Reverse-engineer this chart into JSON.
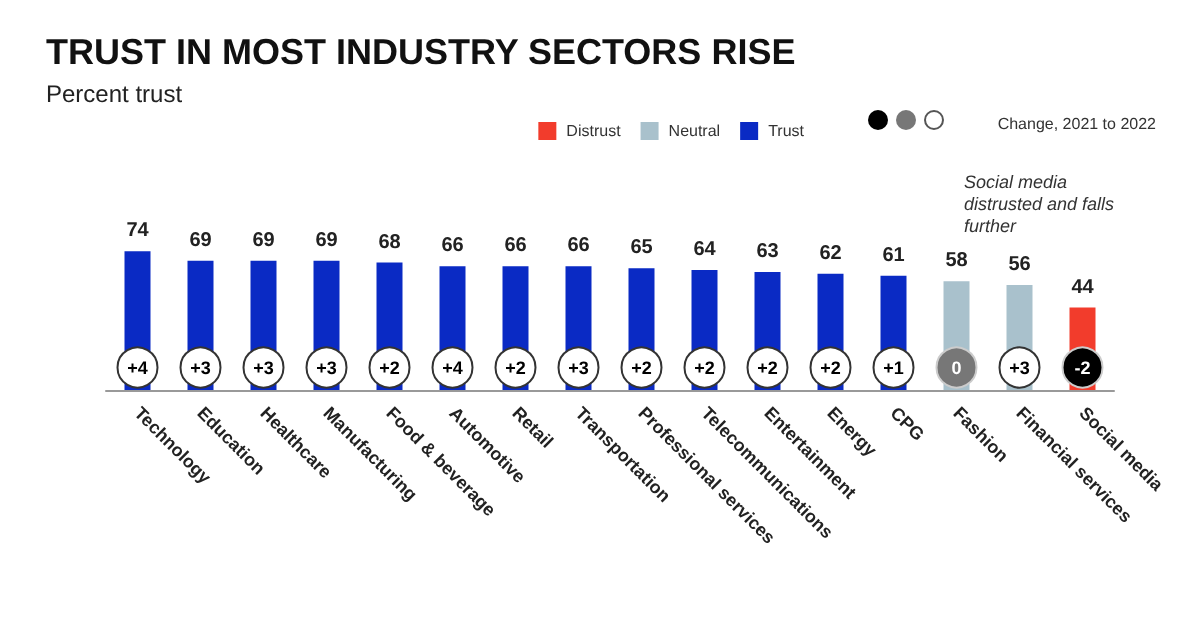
{
  "chart_data": {
    "type": "bar",
    "title": "TRUST IN MOST INDUSTRY SECTORS RISE",
    "subtitle": "Percent trust",
    "categories": [
      "Technology",
      "Education",
      "Healthcare",
      "Manufacturing",
      "Food & beverage",
      "Automotive",
      "Retail",
      "Transportation",
      "Professional services",
      "Telecommunications",
      "Entertainment",
      "Energy",
      "CPG",
      "Fashion",
      "Financial services",
      "Social media"
    ],
    "series": [
      {
        "name": "Distrust",
        "color": "#f23c2c",
        "values": [
          null,
          null,
          null,
          null,
          null,
          null,
          null,
          null,
          null,
          null,
          null,
          null,
          null,
          null,
          null,
          44
        ]
      },
      {
        "name": "Neutral",
        "color": "#a9c1cc",
        "values": [
          null,
          null,
          null,
          null,
          null,
          null,
          null,
          null,
          null,
          null,
          null,
          null,
          null,
          58,
          56,
          null
        ]
      },
      {
        "name": "Trust",
        "color": "#0a2ac4",
        "values": [
          74,
          69,
          69,
          69,
          68,
          66,
          66,
          66,
          65,
          64,
          63,
          62,
          61,
          null,
          null,
          null
        ]
      }
    ],
    "data_labels": true,
    "legend": "top right",
    "annotations": [
      {
        "text": "+4",
        "x": "Technology",
        "y": 12
      },
      {
        "text": "+3",
        "x": "Education",
        "y": 12
      },
      {
        "text": "+3",
        "x": "Healthcare",
        "y": 12
      },
      {
        "text": "+3",
        "x": "Manufacturing",
        "y": 12
      },
      {
        "text": "+2",
        "x": "Food & beverage",
        "y": 12
      },
      {
        "text": "+4",
        "x": "Automotive",
        "y": 12
      },
      {
        "text": "+2",
        "x": "Retail",
        "y": 12
      },
      {
        "text": "+3",
        "x": "Transportation",
        "y": 12
      },
      {
        "text": "+2",
        "x": "Professional services",
        "y": 12
      },
      {
        "text": "+2",
        "x": "Telecommunications",
        "y": 12
      },
      {
        "text": "+2",
        "x": "Entertainment",
        "y": 12
      },
      {
        "text": "+2",
        "x": "Energy",
        "y": 12
      },
      {
        "text": "+1",
        "x": "CPG",
        "y": 12
      },
      {
        "text": "0",
        "x": "Fashion",
        "y": 12
      },
      {
        "text": "+3",
        "x": "Financial services",
        "y": 12
      },
      {
        "text": "-2",
        "x": "Social media",
        "y": 12
      },
      "Social media distrusted and falls further",
      "Change, 2021 to 2022"
    ]
  }
}
